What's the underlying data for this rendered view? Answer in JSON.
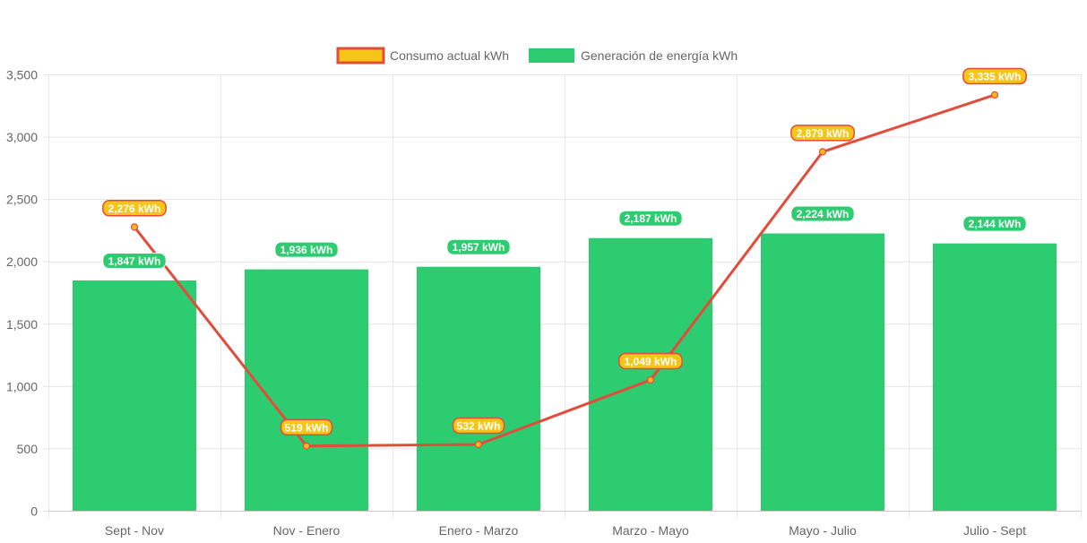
{
  "chart_data": {
    "type": "bar",
    "categories": [
      "Sept - Nov",
      "Nov - Enero",
      "Enero - Marzo",
      "Marzo - Mayo",
      "Mayo - Julio",
      "Julio - Sept"
    ],
    "series": [
      {
        "name": "Consumo actual kWh",
        "type": "line",
        "values": [
          2276,
          519,
          532,
          1049,
          2879,
          3335
        ],
        "labels": [
          "2,276 kWh",
          "519 kWh",
          "532 kWh",
          "1,049 kWh",
          "2,879 kWh",
          "3,335 kWh"
        ],
        "color": "#e34b3b",
        "point_color": "#f5b820",
        "label_bg": "#f5c518",
        "label_border": "#e34b3b"
      },
      {
        "name": "Generación de energía kWh",
        "type": "bar",
        "values": [
          1847,
          1936,
          1957,
          2187,
          2224,
          2144
        ],
        "labels": [
          "1,847 kWh",
          "1,936 kWh",
          "1,957 kWh",
          "2,187 kWh",
          "2,224 kWh",
          "2,144 kWh"
        ],
        "color": "#2ecc71",
        "label_bg": "#2ecc71"
      }
    ],
    "ylim": [
      0,
      3500
    ],
    "yticks": [
      0,
      500,
      1000,
      1500,
      2000,
      2500,
      3000,
      3500
    ],
    "ytick_labels": [
      "0",
      "500",
      "1,000",
      "1,500",
      "2,000",
      "2,500",
      "3,000",
      "3,500"
    ],
    "grid": true,
    "legend_position": "top"
  }
}
